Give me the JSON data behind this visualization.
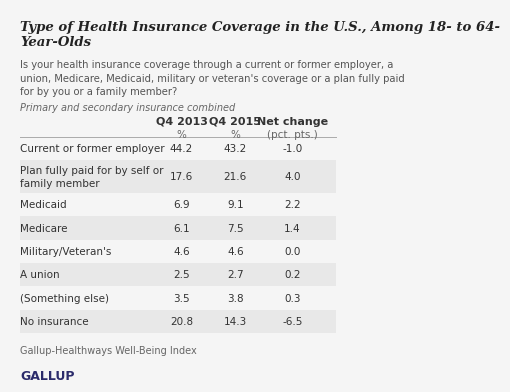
{
  "title": "Type of Health Insurance Coverage in the U.S., Among 18- to 64-\nYear-Olds",
  "subtitle": "Is your health insurance coverage through a current or former employer, a\nunion, Medicare, Medicaid, military or veteran's coverage or a plan fully paid\nfor by you or a family member?",
  "note": "Primary and secondary insurance combined",
  "col_headers": [
    "Q4 2013",
    "Q4 2015",
    "Net change"
  ],
  "col_subheaders": [
    "%",
    "%",
    "(pct. pts.)"
  ],
  "rows": [
    [
      "Current or former employer",
      "44.2",
      "43.2",
      "-1.0"
    ],
    [
      "Plan fully paid for by self or\nfamily member",
      "17.6",
      "21.6",
      "4.0"
    ],
    [
      "Medicaid",
      "6.9",
      "9.1",
      "2.2"
    ],
    [
      "Medicare",
      "6.1",
      "7.5",
      "1.4"
    ],
    [
      "Military/Veteran's",
      "4.6",
      "4.6",
      "0.0"
    ],
    [
      "A union",
      "2.5",
      "2.7",
      "0.2"
    ],
    [
      "(Something else)",
      "3.5",
      "3.8",
      "0.3"
    ],
    [
      "No insurance",
      "20.8",
      "14.3",
      "-6.5"
    ]
  ],
  "row_shading_odd": "#e8e8e8",
  "row_shading_even": "#f5f5f5",
  "source": "Gallup-Healthways Well-Being Index",
  "logo": "GALLUP",
  "bg_color": "#f5f5f5",
  "title_color": "#222222",
  "header_color": "#333333",
  "text_color": "#333333"
}
